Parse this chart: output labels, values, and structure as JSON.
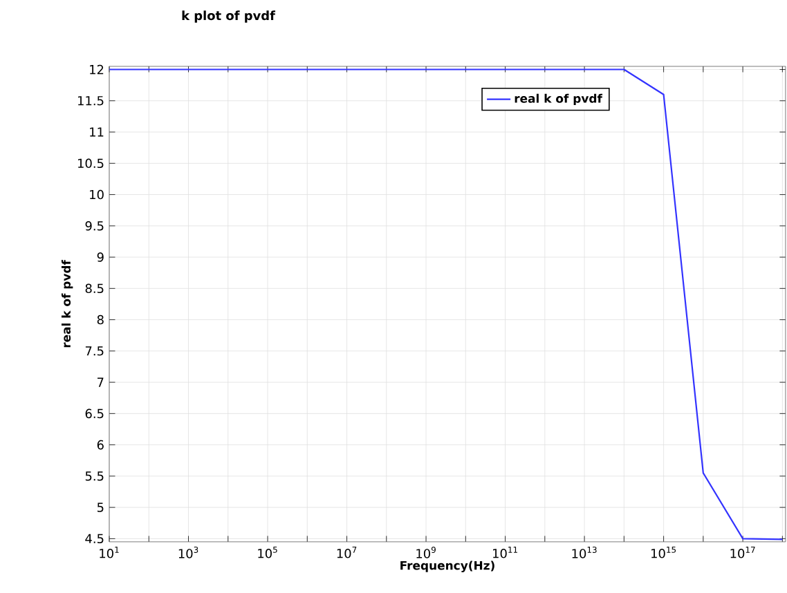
{
  "chart_data": {
    "type": "line",
    "title": "k plot of pvdf",
    "xlabel": "Frequency(Hz)",
    "ylabel": "real k of pvdf",
    "x": [
      10,
      100,
      1000,
      10000.0,
      100000.0,
      1000000.0,
      10000000.0,
      100000000.0,
      1000000000.0,
      10000000000.0,
      100000000000.0,
      1000000000000.0,
      10000000000000.0,
      100000000000000.0,
      1000000000000000.0,
      1e+16,
      1e+17,
      1e+18
    ],
    "series": [
      {
        "name": "real k of pvdf",
        "color": "#3333ff",
        "values": [
          12,
          12,
          12,
          12,
          12,
          12,
          12,
          12,
          12,
          12,
          12,
          12,
          12,
          12,
          11.6,
          5.55,
          4.5,
          4.49
        ]
      }
    ],
    "xlim": [
      10,
      1.2e+18
    ],
    "ylim": [
      4.45,
      12.05
    ],
    "xticks": [
      {
        "value": 10,
        "label": "10$^{1}$"
      },
      {
        "value": 100,
        "label": null
      },
      {
        "value": 1000,
        "label": "10$^{3}$"
      },
      {
        "value": 10000.0,
        "label": null
      },
      {
        "value": 100000.0,
        "label": "10$^{5}$"
      },
      {
        "value": 1000000.0,
        "label": null
      },
      {
        "value": 10000000.0,
        "label": "10$^{7}$"
      },
      {
        "value": 100000000.0,
        "label": null
      },
      {
        "value": 1000000000.0,
        "label": "10$^{9}$"
      },
      {
        "value": 10000000000.0,
        "label": null
      },
      {
        "value": 100000000000.0,
        "label": "10$^{11}$"
      },
      {
        "value": 1000000000000.0,
        "label": null
      },
      {
        "value": 10000000000000.0,
        "label": "10$^{13}$"
      },
      {
        "value": 100000000000000.0,
        "label": null
      },
      {
        "value": 1000000000000000.0,
        "label": "10$^{15}$"
      },
      {
        "value": 1e+16,
        "label": null
      },
      {
        "value": 1e+17,
        "label": "10$^{17}$"
      },
      {
        "value": 1e+18,
        "label": null
      }
    ],
    "yticks": [
      4.5,
      5,
      5.5,
      6,
      6.5,
      7,
      7.5,
      8,
      8.5,
      9,
      9.5,
      10,
      10.5,
      11,
      11.5,
      12
    ],
    "log": "x",
    "grid": true,
    "legend": "top right"
  }
}
